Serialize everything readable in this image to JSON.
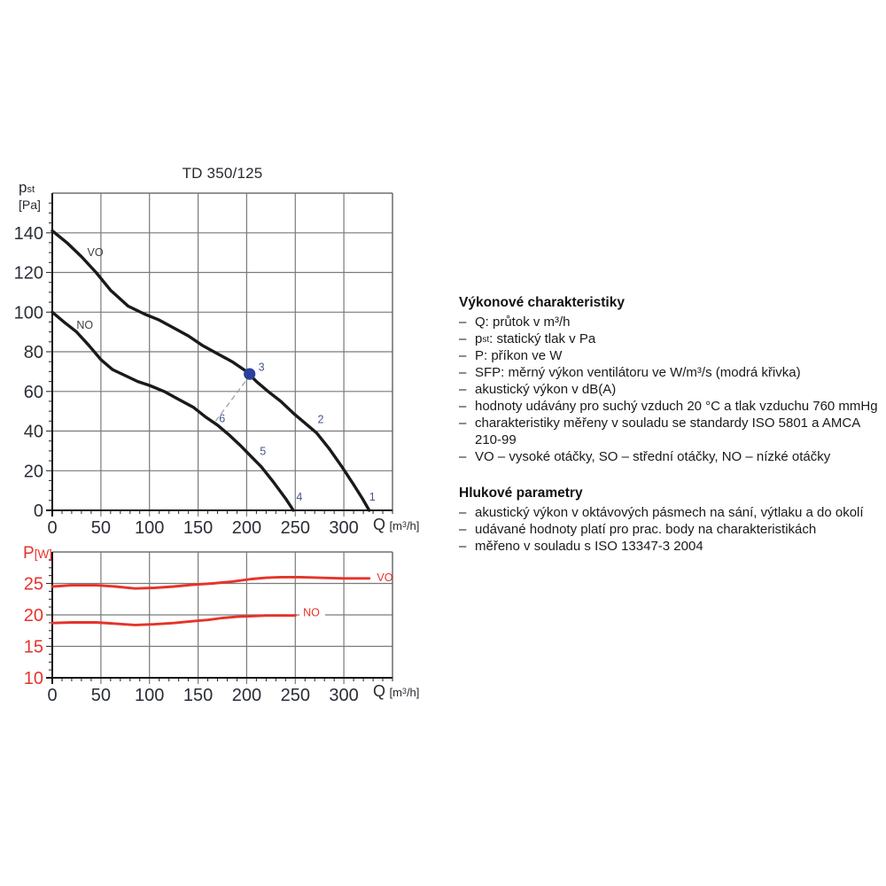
{
  "chart_data": [
    {
      "type": "line",
      "title": "TD 350/125",
      "ylabel": {
        "symbol": "p",
        "symbol_sub": "st",
        "unit": "[Pa]"
      },
      "xlabel": {
        "symbol": "Q",
        "unit_pre": "[m",
        "unit_sup": "3",
        "unit_post": "/h]"
      },
      "xlim": [
        0,
        350
      ],
      "ylim": [
        0,
        160
      ],
      "xticks": [
        0,
        50,
        100,
        150,
        200,
        250,
        300
      ],
      "yticks": [
        0,
        20,
        40,
        60,
        80,
        100,
        120,
        140
      ],
      "x_minor_step": 10,
      "y_minor_step": 5,
      "grid": true,
      "curve_width": 3.4,
      "series": [
        {
          "name": "VO",
          "color": "#1a1a1a",
          "label_color": "#3f3f3f",
          "label_pos": [
            36,
            130
          ],
          "points": [
            [
              0,
              141
            ],
            [
              15,
              135
            ],
            [
              30,
              128
            ],
            [
              45,
              120
            ],
            [
              60,
              111
            ],
            [
              78,
              103
            ],
            [
              95,
              99
            ],
            [
              110,
              96
            ],
            [
              125,
              92
            ],
            [
              140,
              88
            ],
            [
              155,
              83
            ],
            [
              170,
              79
            ],
            [
              185,
              75
            ],
            [
              200,
              70
            ],
            [
              210,
              65
            ],
            [
              222,
              60
            ],
            [
              235,
              55
            ],
            [
              248,
              49
            ],
            [
              260,
              44
            ],
            [
              272,
              39
            ],
            [
              285,
              31
            ],
            [
              298,
              22
            ],
            [
              310,
              13
            ],
            [
              319,
              6
            ],
            [
              326,
              0
            ]
          ]
        },
        {
          "name": "NO",
          "color": "#1a1a1a",
          "label_color": "#3f3f3f",
          "label_pos": [
            25,
            93.5
          ],
          "points": [
            [
              0,
              100
            ],
            [
              12,
              95
            ],
            [
              25,
              90
            ],
            [
              38,
              83
            ],
            [
              50,
              76
            ],
            [
              62,
              71
            ],
            [
              75,
              68
            ],
            [
              88,
              65
            ],
            [
              100,
              63
            ],
            [
              115,
              60
            ],
            [
              130,
              56
            ],
            [
              145,
              52
            ],
            [
              158,
              47
            ],
            [
              170,
              43
            ],
            [
              182,
              38
            ],
            [
              193,
              33
            ],
            [
              203,
              28
            ],
            [
              215,
              22
            ],
            [
              228,
              14
            ],
            [
              240,
              6
            ],
            [
              248,
              0
            ]
          ]
        }
      ],
      "point_labels": [
        {
          "label": "1",
          "x": 326,
          "y": 5
        },
        {
          "label": "2",
          "x": 273,
          "y": 44
        },
        {
          "label": "3",
          "x": 212,
          "y": 70.5
        },
        {
          "label": "4",
          "x": 251,
          "y": 5
        },
        {
          "label": "5",
          "x": 213.5,
          "y": 28
        },
        {
          "label": "6",
          "x": 171.5,
          "y": 44.5
        }
      ],
      "marker": {
        "x": 203,
        "y": 68.8,
        "label": "3",
        "color": "#2b3f9d"
      },
      "connector": {
        "x1": 168,
        "y1": 45,
        "x2": 201,
        "y2": 66.5
      }
    },
    {
      "type": "line",
      "title": "",
      "ylabel": {
        "symbol": "P",
        "unit": "[W]"
      },
      "xlabel": {
        "symbol": "Q",
        "unit_pre": "[m",
        "unit_sup": "3",
        "unit_post": "/h]"
      },
      "xlim": [
        0,
        350
      ],
      "ylim": [
        10,
        30
      ],
      "xticks": [
        0,
        50,
        100,
        150,
        200,
        250,
        300
      ],
      "yticks": [
        10,
        15,
        20,
        25
      ],
      "ytick_color": "#e6332a",
      "x_minor_step": 10,
      "y_minor_step": 1.25,
      "grid": true,
      "curve_width": 2.9,
      "series": [
        {
          "name": "VO",
          "color": "#e6332a",
          "label_color": "#e6332a",
          "label_pos": [
            334,
            25.9
          ],
          "points": [
            [
              0,
              24.5
            ],
            [
              20,
              24.7
            ],
            [
              45,
              24.7
            ],
            [
              65,
              24.5
            ],
            [
              85,
              24.2
            ],
            [
              105,
              24.3
            ],
            [
              125,
              24.5
            ],
            [
              145,
              24.8
            ],
            [
              165,
              25.0
            ],
            [
              185,
              25.3
            ],
            [
              205,
              25.7
            ],
            [
              220,
              25.9
            ],
            [
              235,
              26.0
            ],
            [
              255,
              26.0
            ],
            [
              275,
              25.9
            ],
            [
              300,
              25.8
            ],
            [
              326,
              25.8
            ]
          ]
        },
        {
          "name": "NO",
          "color": "#e6332a",
          "label_color": "#e6332a",
          "label_bg": true,
          "label_pos": [
            258,
            20.35
          ],
          "points": [
            [
              0,
              18.7
            ],
            [
              20,
              18.8
            ],
            [
              45,
              18.8
            ],
            [
              65,
              18.6
            ],
            [
              85,
              18.4
            ],
            [
              105,
              18.5
            ],
            [
              125,
              18.7
            ],
            [
              145,
              19.0
            ],
            [
              160,
              19.2
            ],
            [
              175,
              19.5
            ],
            [
              190,
              19.7
            ],
            [
              205,
              19.8
            ],
            [
              220,
              19.9
            ],
            [
              250,
              19.9
            ]
          ]
        }
      ],
      "point_labels": []
    }
  ],
  "colors": {
    "grid": "#7a7a7a",
    "frame": "#555555",
    "axis": "#111111",
    "tick_label": "#2a2e36",
    "point_label": "#45558f",
    "connector": "#999999",
    "marker_blue": "#2b3f9d",
    "red": "#e6332a"
  },
  "performance": {
    "title": "Výkonové charakteristiky",
    "bullet": "–",
    "items": [
      {
        "text": "Q: průtok v m³/h"
      },
      {
        "pre": "p",
        "sub": "st",
        "text": ": statický tlak v Pa"
      },
      {
        "text": "P: příkon ve W"
      },
      {
        "text": "SFP: měrný výkon ventilátoru ve W/m³/s (modrá křivka)"
      },
      {
        "text": "akustický výkon v dB(A)"
      },
      {
        "text": "hodnoty udávány pro suchý vzduch 20 °C a tlak vzduchu 760 mmHg"
      },
      {
        "text": "charakteristiky měřeny v souladu se standardy ISO 5801 a AMCA\n210-99"
      },
      {
        "text": "VO – vysoké otáčky, SO – střední otáčky, NO – nízké otáčky"
      }
    ]
  },
  "noise": {
    "title": "Hlukové parametry",
    "bullet": "–",
    "items": [
      {
        "text": "akustický výkon v oktávových pásmech na sání, výtlaku a do okolí"
      },
      {
        "text": "udávané hodnoty platí pro prac. body na charakteristikách"
      },
      {
        "text": "měřeno v souladu s ISO 13347-3 2004"
      }
    ]
  }
}
